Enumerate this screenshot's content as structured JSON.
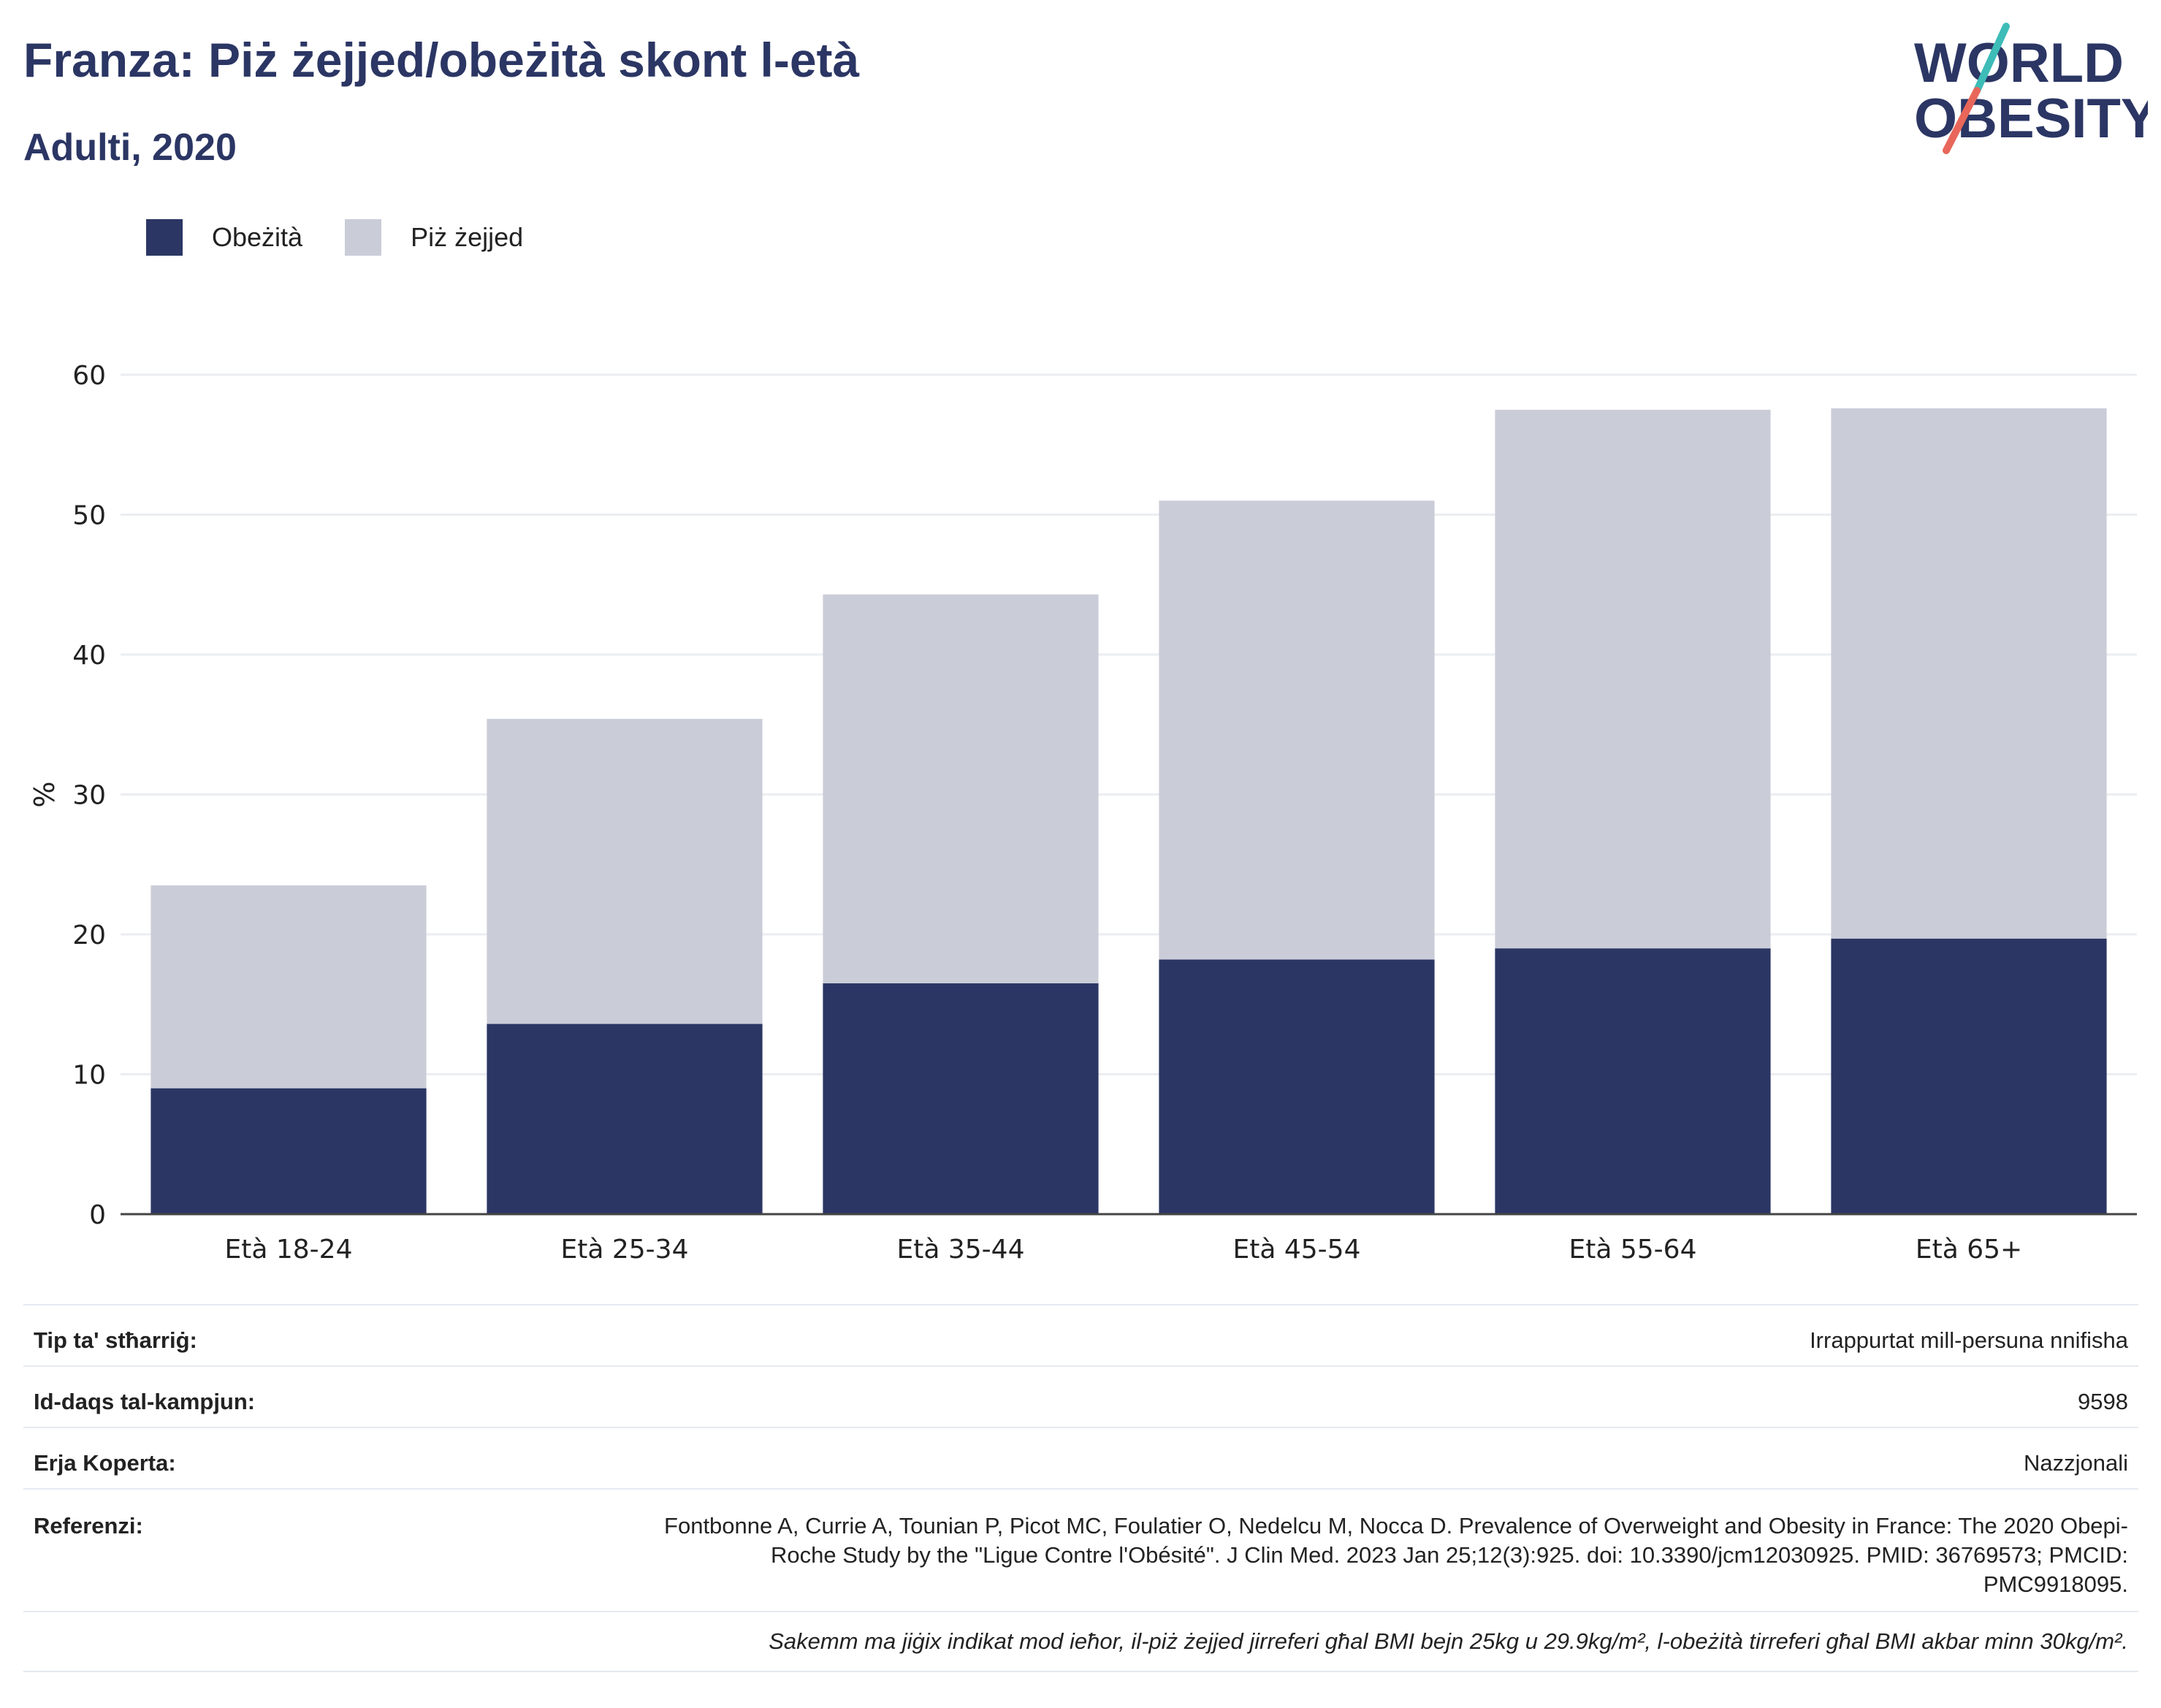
{
  "title": "Franza: Piż żejjed/obeżità skont l-età",
  "subtitle": "Adulti, 2020",
  "logo": {
    "line1": "WORLD",
    "line2": "OBESITY"
  },
  "legend": [
    {
      "label": "Obeżità",
      "color": "#2b3664"
    },
    {
      "label": "Piż żejjed",
      "color": "#cacdd8"
    }
  ],
  "chart_data": {
    "type": "bar",
    "stacked": true,
    "categories": [
      "Età 18-24",
      "Età 25-34",
      "Età 35-44",
      "Età 45-54",
      "Età 55-64",
      "Età 65+"
    ],
    "series": [
      {
        "name": "Obeżità",
        "color": "#2b3664",
        "values": [
          9.0,
          13.6,
          16.5,
          18.2,
          19.0,
          19.7
        ]
      },
      {
        "name": "Piż żejjed",
        "color": "#cacdd8",
        "values": [
          14.5,
          21.8,
          27.8,
          32.8,
          38.5,
          37.9
        ]
      }
    ],
    "ylabel": "%",
    "ylim": [
      0,
      60
    ],
    "yticks": [
      0,
      10,
      20,
      30,
      40,
      50,
      60
    ],
    "grid": true,
    "legend_position": "top-left"
  },
  "meta": {
    "survey_type_label": "Tip ta' stħarriġ:",
    "survey_type_value": "Irrappurtat mill-persuna nnifisha",
    "sample_size_label": "Id-daqs tal-kampjun:",
    "sample_size_value": "9598",
    "coverage_label": "Erja Koperta:",
    "coverage_value": "Nazzjonali",
    "references_label": "Referenzi:",
    "references_value": "Fontbonne A, Currie A, Tounian P, Picot MC, Foulatier O, Nedelcu M, Nocca D. Prevalence of Overweight and Obesity in France: The 2020 Obepi-Roche Study by the \"Ligue Contre l'Obésité\". J Clin Med. 2023 Jan 25;12(3):925. doi: 10.3390/jcm12030925. PMID: 36769573; PMCID: PMC9918095.",
    "note": "Sakemm ma jiġix indikat mod ieħor, il-piż żejjed jirreferi għal BMI bejn 25kg u 29.9kg/m², l-obeżità tirreferi għal BMI akbar minn 30kg/m²."
  }
}
